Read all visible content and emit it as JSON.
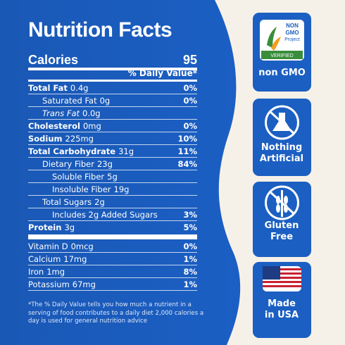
{
  "header": {
    "title": "Nutrition Facts",
    "calories_label": "Calories",
    "calories_value": "95",
    "daily_value_header": "% Daily Value*"
  },
  "nutrients": [
    {
      "name": "Total Fat",
      "amount": "0.4g",
      "dv": "0%"
    },
    {
      "name": "Saturated Fat",
      "amount": "0g",
      "dv": "0%"
    },
    {
      "name": "Trans Fat",
      "amount": "0.0g"
    },
    {
      "name": "Cholesterol",
      "amount": "0mg",
      "dv": "0%"
    },
    {
      "name": "Sodium",
      "amount": "225mg",
      "dv": "10%"
    },
    {
      "name": "Total Carbohydrate",
      "amount": "31g",
      "dv": "11%"
    },
    {
      "name": "Dietary Fiber",
      "amount": "23g",
      "dv": "84%"
    },
    {
      "name": "Soluble Fiber",
      "amount": "5g"
    },
    {
      "name": "Insoluble Fiber",
      "amount": "19g"
    },
    {
      "name": "Total Sugars",
      "amount": "2g"
    },
    {
      "name": "Includes 2g Added Sugars",
      "dv": "3%"
    },
    {
      "name": "Protein",
      "amount": "3g",
      "dv": "5%"
    }
  ],
  "vitamins": [
    {
      "name": "Vitamin D",
      "amount": "0mcg",
      "dv": "0%"
    },
    {
      "name": "Calcium",
      "amount": "17mg",
      "dv": "1%"
    },
    {
      "name": "Iron",
      "amount": "1mg",
      "dv": "8%"
    },
    {
      "name": "Potassium",
      "amount": "67mg",
      "dv": "1%"
    }
  ],
  "footnote": "*The % Daily Value tells you how much a nutrient in a serving of food contributes to a daily diet 2,000 calories a day is used for general nutrition advice",
  "badges": [
    {
      "logo": [
        "NON",
        "GMO",
        "Project",
        "VERIFIED"
      ],
      "label": "non GMO"
    },
    {
      "label": "Nothing Artificial"
    },
    {
      "label": "Gluten Free"
    },
    {
      "label": "Made in USA"
    }
  ]
}
